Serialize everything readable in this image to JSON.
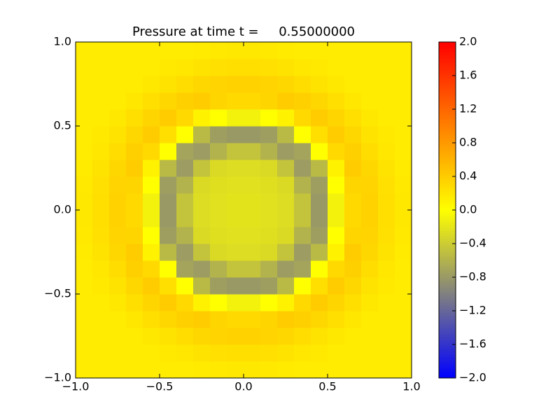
{
  "chart_data": {
    "type": "heatmap",
    "title": "Pressure at time t =     0.55000000",
    "xlim": [
      -1,
      1
    ],
    "ylim": [
      -1,
      1
    ],
    "xticks": [
      {
        "value": -1,
        "label": "−1.0"
      },
      {
        "value": -0.5,
        "label": "−0.5"
      },
      {
        "value": 0,
        "label": "0.0"
      },
      {
        "value": 0.5,
        "label": "0.5"
      },
      {
        "value": 1,
        "label": "1.0"
      }
    ],
    "yticks": [
      {
        "value": -1,
        "label": "−1.0"
      },
      {
        "value": -0.5,
        "label": "−0.5"
      },
      {
        "value": 0,
        "label": "0.0"
      },
      {
        "value": 0.5,
        "label": "0.5"
      },
      {
        "value": 1,
        "label": "1.0"
      }
    ],
    "x": [
      -0.95,
      -0.85,
      -0.75,
      -0.65,
      -0.55,
      -0.45,
      -0.35,
      -0.25,
      -0.15,
      -0.05,
      0.05,
      0.15,
      0.25,
      0.35,
      0.45,
      0.55,
      0.65,
      0.75,
      0.85,
      0.95
    ],
    "y": [
      -0.95,
      -0.85,
      -0.75,
      -0.65,
      -0.55,
      -0.45,
      -0.35,
      -0.25,
      -0.15,
      -0.05,
      0.05,
      0.15,
      0.25,
      0.35,
      0.45,
      0.55,
      0.65,
      0.75,
      0.85,
      0.95
    ],
    "z": [
      [
        0.15,
        0.15,
        0.15,
        0.15,
        0.15,
        0.15,
        0.15,
        0.16,
        0.17,
        0.18,
        0.18,
        0.17,
        0.16,
        0.15,
        0.15,
        0.15,
        0.15,
        0.15,
        0.15,
        0.15
      ],
      [
        0.15,
        0.15,
        0.15,
        0.15,
        0.15,
        0.17,
        0.19,
        0.22,
        0.24,
        0.25,
        0.25,
        0.24,
        0.22,
        0.19,
        0.17,
        0.15,
        0.15,
        0.15,
        0.15,
        0.15
      ],
      [
        0.15,
        0.15,
        0.15,
        0.15,
        0.18,
        0.22,
        0.27,
        0.31,
        0.34,
        0.35,
        0.35,
        0.34,
        0.31,
        0.27,
        0.22,
        0.18,
        0.15,
        0.15,
        0.15,
        0.15
      ],
      [
        0.15,
        0.15,
        0.15,
        0.19,
        0.25,
        0.31,
        0.37,
        0.4,
        0.33,
        0.3,
        0.3,
        0.33,
        0.4,
        0.37,
        0.31,
        0.25,
        0.19,
        0.15,
        0.15,
        0.15
      ],
      [
        0.15,
        0.15,
        0.18,
        0.25,
        0.33,
        0.4,
        0.3,
        0.1,
        0,
        -0.1,
        -0.1,
        0,
        0.1,
        0.3,
        0.4,
        0.33,
        0.25,
        0.18,
        0.15,
        0.15
      ],
      [
        0.15,
        0.17,
        0.22,
        0.31,
        0.4,
        0.25,
        0,
        -0.55,
        -0.76,
        -0.8,
        -0.8,
        -0.76,
        -0.55,
        0,
        0.25,
        0.4,
        0.31,
        0.22,
        0.17,
        0.15
      ],
      [
        0.15,
        0.19,
        0.27,
        0.37,
        0.3,
        0,
        -0.72,
        -0.77,
        -0.6,
        -0.47,
        -0.47,
        -0.6,
        -0.77,
        -0.72,
        0,
        0.3,
        0.37,
        0.27,
        0.19,
        0.15
      ],
      [
        0.16,
        0.22,
        0.31,
        0.4,
        0.1,
        -0.55,
        -0.77,
        -0.47,
        -0.29,
        -0.27,
        -0.27,
        -0.29,
        -0.47,
        -0.77,
        -0.55,
        0.1,
        0.4,
        0.31,
        0.22,
        0.16
      ],
      [
        0.17,
        0.24,
        0.34,
        0.33,
        0,
        -0.76,
        -0.6,
        -0.29,
        -0.25,
        -0.24,
        -0.24,
        -0.25,
        -0.29,
        -0.6,
        -0.76,
        0,
        0.33,
        0.34,
        0.24,
        0.17
      ],
      [
        0.18,
        0.25,
        0.35,
        0.3,
        -0.1,
        -0.8,
        -0.47,
        -0.27,
        -0.24,
        -0.22,
        -0.22,
        -0.24,
        -0.27,
        -0.47,
        -0.8,
        -0.1,
        0.3,
        0.35,
        0.25,
        0.18
      ],
      [
        0.18,
        0.25,
        0.35,
        0.3,
        -0.1,
        -0.8,
        -0.47,
        -0.27,
        -0.24,
        -0.22,
        -0.22,
        -0.24,
        -0.27,
        -0.47,
        -0.8,
        -0.1,
        0.3,
        0.35,
        0.25,
        0.18
      ],
      [
        0.17,
        0.24,
        0.34,
        0.33,
        0,
        -0.76,
        -0.6,
        -0.29,
        -0.25,
        -0.24,
        -0.24,
        -0.25,
        -0.29,
        -0.6,
        -0.76,
        0,
        0.33,
        0.34,
        0.24,
        0.17
      ],
      [
        0.16,
        0.22,
        0.31,
        0.4,
        0.1,
        -0.55,
        -0.77,
        -0.47,
        -0.29,
        -0.27,
        -0.27,
        -0.29,
        -0.47,
        -0.77,
        -0.55,
        0.1,
        0.4,
        0.31,
        0.22,
        0.16
      ],
      [
        0.15,
        0.19,
        0.27,
        0.37,
        0.3,
        0,
        -0.72,
        -0.77,
        -0.6,
        -0.47,
        -0.47,
        -0.6,
        -0.77,
        -0.72,
        0,
        0.3,
        0.37,
        0.27,
        0.19,
        0.15
      ],
      [
        0.15,
        0.17,
        0.22,
        0.31,
        0.4,
        0.25,
        0,
        -0.55,
        -0.76,
        -0.8,
        -0.8,
        -0.76,
        -0.55,
        0,
        0.25,
        0.4,
        0.31,
        0.22,
        0.17,
        0.15
      ],
      [
        0.15,
        0.15,
        0.18,
        0.25,
        0.33,
        0.4,
        0.3,
        0.1,
        0,
        -0.1,
        -0.1,
        0,
        0.1,
        0.3,
        0.4,
        0.33,
        0.25,
        0.18,
        0.15,
        0.15
      ],
      [
        0.15,
        0.15,
        0.15,
        0.19,
        0.25,
        0.31,
        0.37,
        0.4,
        0.33,
        0.3,
        0.3,
        0.33,
        0.4,
        0.37,
        0.31,
        0.25,
        0.19,
        0.15,
        0.15,
        0.15
      ],
      [
        0.15,
        0.15,
        0.15,
        0.15,
        0.18,
        0.22,
        0.27,
        0.31,
        0.34,
        0.35,
        0.35,
        0.34,
        0.31,
        0.27,
        0.22,
        0.18,
        0.15,
        0.15,
        0.15,
        0.15
      ],
      [
        0.15,
        0.15,
        0.15,
        0.15,
        0.15,
        0.17,
        0.19,
        0.22,
        0.24,
        0.25,
        0.25,
        0.24,
        0.22,
        0.19,
        0.17,
        0.15,
        0.15,
        0.15,
        0.15,
        0.15
      ],
      [
        0.15,
        0.15,
        0.15,
        0.15,
        0.15,
        0.15,
        0.15,
        0.16,
        0.17,
        0.18,
        0.18,
        0.17,
        0.16,
        0.15,
        0.15,
        0.15,
        0.15,
        0.15,
        0.15,
        0.15
      ]
    ],
    "colorscale": [
      [
        -2,
        "#0000ff"
      ],
      [
        -1,
        "#808080"
      ],
      [
        0,
        "#ffff00"
      ],
      [
        2,
        "#ff0000"
      ]
    ],
    "colorbar": {
      "lim": [
        -2,
        2
      ],
      "ticks": [
        {
          "value": -2,
          "label": "−2.0"
        },
        {
          "value": -1.6,
          "label": "−1.6"
        },
        {
          "value": -1.2,
          "label": "−1.2"
        },
        {
          "value": -0.8,
          "label": "−0.8"
        },
        {
          "value": -0.4,
          "label": "−0.4"
        },
        {
          "value": 0,
          "label": "0.0"
        },
        {
          "value": 0.4,
          "label": "0.4"
        },
        {
          "value": 0.8,
          "label": "0.8"
        },
        {
          "value": 1.2,
          "label": "1.2"
        },
        {
          "value": 1.6,
          "label": "1.6"
        },
        {
          "value": 2,
          "label": "2.0"
        }
      ]
    }
  }
}
